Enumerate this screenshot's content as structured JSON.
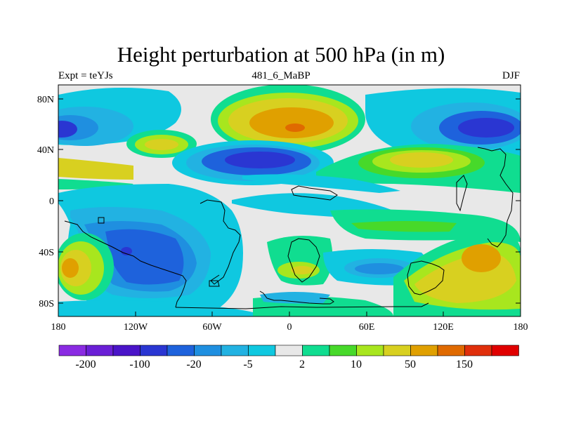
{
  "map": {
    "title": "Height perturbation at 500 hPa (in m)",
    "left_label": "Expt = teYJs",
    "center_label": "481_6_MaBP",
    "right_label": "DJF",
    "lat_ticks": [
      "80N",
      "40N",
      "0",
      "40S",
      "80S"
    ],
    "lon_ticks": [
      "180",
      "120W",
      "60W",
      "0",
      "60E",
      "120E",
      "180"
    ]
  },
  "colorbar": {
    "colors": [
      "#8a2be2",
      "#6a1fd6",
      "#4a14c8",
      "#2a36d2",
      "#1e62dc",
      "#1f8fe0",
      "#22b2e2",
      "#0fc8e0",
      "#e8e8e8",
      "#10dd90",
      "#47d92a",
      "#a8e61e",
      "#d8d020",
      "#e0a000",
      "#e06a00",
      "#e02f0b",
      "#e00000"
    ],
    "labels": [
      "-200",
      "-100",
      "-20",
      "-5",
      "2",
      "10",
      "50",
      "150"
    ]
  }
}
